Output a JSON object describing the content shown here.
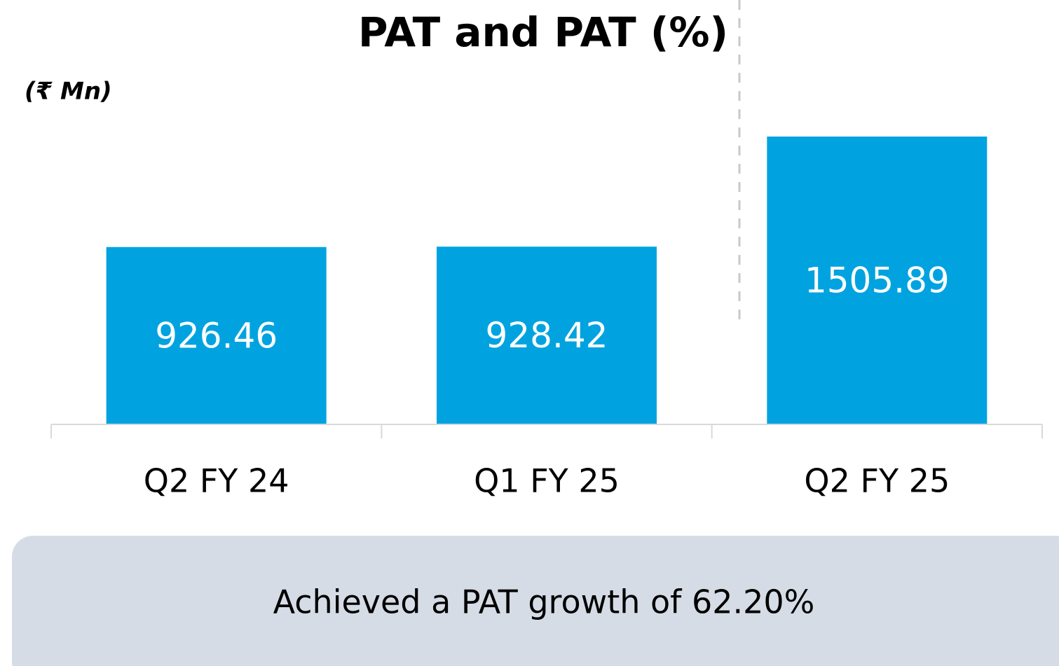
{
  "chart_data": {
    "type": "bar",
    "title": "PAT and PAT (%)",
    "y_label": "(₹ Mn)",
    "categories": [
      "Q2 FY 24",
      "Q1 FY 25",
      "Q2 FY 25"
    ],
    "values": [
      926.46,
      928.42,
      1505.89
    ],
    "color": "#00a3e0",
    "annotation": "Achieved a PAT growth of 62.20%"
  }
}
